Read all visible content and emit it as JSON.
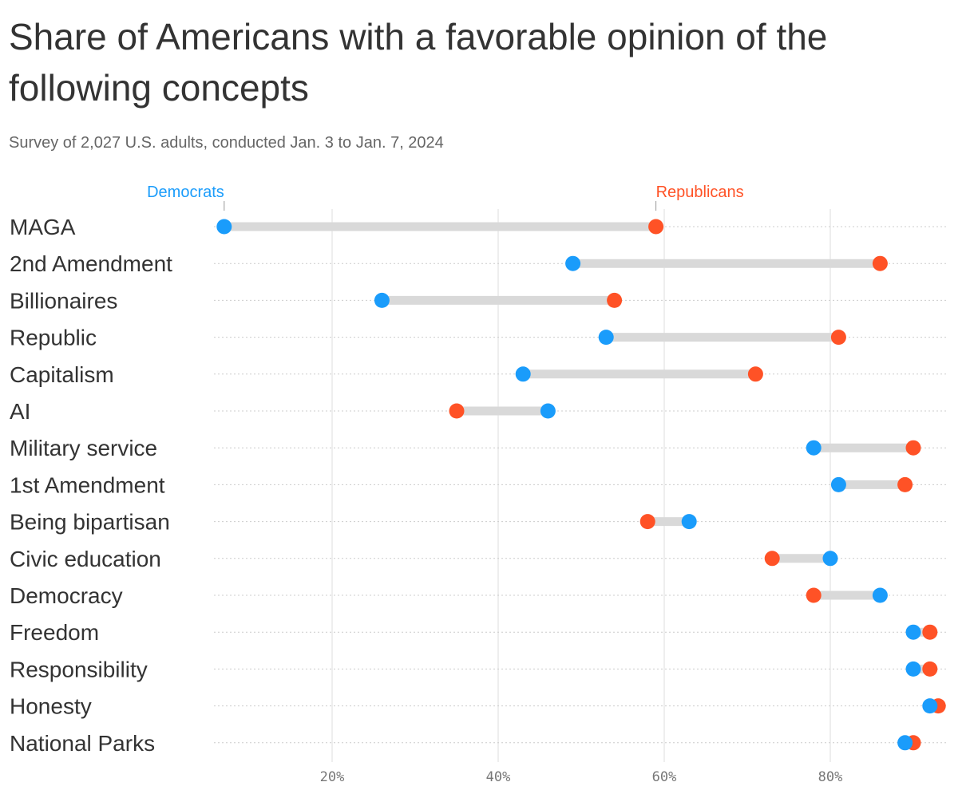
{
  "title": "Share of Americans with a favorable opinion of the following concepts",
  "subtitle": "Survey of 2,027 U.S. adults, conducted Jan. 3 to Jan. 7, 2024",
  "chart_data": {
    "type": "dumbbell",
    "title": "Share of Americans with a favorable opinion of the following concepts",
    "subtitle": "Survey of 2,027 U.S. adults, conducted Jan. 3 to Jan. 7, 2024",
    "categories": [
      "MAGA",
      "2nd Amendment",
      "Billionaires",
      "Republic",
      "Capitalism",
      "AI",
      "Military service",
      "1st Amendment",
      "Being bipartisan",
      "Civic education",
      "Democracy",
      "Freedom",
      "Responsibility",
      "Honesty",
      "National Parks"
    ],
    "series": [
      {
        "name": "Democrats",
        "color": "#1a9cfb",
        "values": [
          7,
          49,
          26,
          53,
          43,
          46,
          78,
          81,
          63,
          80,
          86,
          90,
          90,
          92,
          89
        ]
      },
      {
        "name": "Republicans",
        "color": "#ff5226",
        "values": [
          59,
          86,
          54,
          81,
          71,
          35,
          90,
          89,
          58,
          73,
          78,
          92,
          92,
          93,
          90
        ]
      }
    ],
    "xlim": [
      0,
      94
    ],
    "xticks": [
      20,
      40,
      60,
      80
    ],
    "xtick_labels": [
      "20%",
      "40%",
      "60%",
      "80%"
    ],
    "grid": true,
    "legend": "top, labels above first row"
  }
}
